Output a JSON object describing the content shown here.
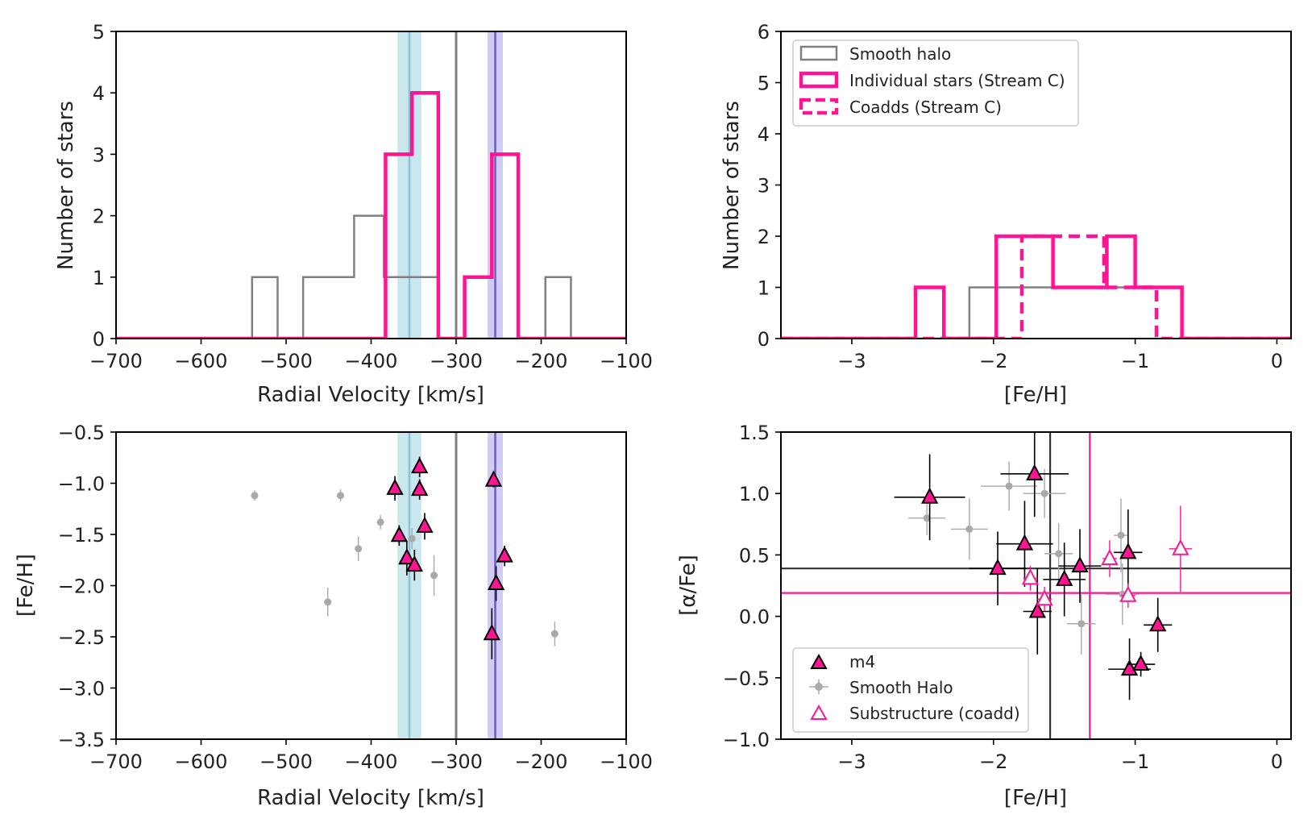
{
  "colors": {
    "magenta": "#ff1493",
    "grey": "#808080",
    "lightgrey": "#a9a9a9",
    "cyan_band": "#add8e6",
    "cyan_line": "#87c4d6",
    "blue_band": "#b9b1f0",
    "blue_line": "#6a5acd",
    "dark": "#333333"
  },
  "chart_data": [
    {
      "id": "rv_hist",
      "type": "histogram",
      "xlabel": "Radial Velocity [km/s]",
      "ylabel": "Number of stars",
      "xlim": [
        -700,
        -100
      ],
      "ylim": [
        0,
        5
      ],
      "xticks": [
        -700,
        -600,
        -500,
        -400,
        -300,
        -200,
        -100
      ],
      "xtick_labels": [
        "−700",
        "−600",
        "−500",
        "−400",
        "−300",
        "−200",
        "−100"
      ],
      "yticks": [
        0,
        1,
        2,
        3,
        4,
        5
      ],
      "ytick_labels": [
        "0",
        "1",
        "2",
        "3",
        "4",
        "5"
      ],
      "bands": [
        {
          "name": "stream-c-velocity-band",
          "x0": -369,
          "x1": -341,
          "center": -355,
          "color": "cyan"
        },
        {
          "name": "second-velocity-band",
          "x0": -263,
          "x1": -245,
          "center": -254,
          "color": "blue"
        }
      ],
      "vlines": [
        {
          "name": "halo-mean-velocity",
          "x": -300
        }
      ],
      "series": [
        {
          "name": "Smooth halo",
          "edges": [
            -700,
            -540,
            -510,
            -480,
            -420,
            -385,
            -320,
            -290,
            -260,
            -230,
            -195,
            -165,
            -100
          ],
          "counts": [
            0,
            1,
            0,
            1,
            2,
            1,
            0,
            0,
            0,
            0,
            1,
            0
          ]
        },
        {
          "name": "Individual stars (Stream C)",
          "edges": [
            -700,
            -383,
            -352,
            -321,
            -290,
            -258,
            -227,
            -100
          ],
          "counts": [
            0,
            3,
            4,
            0,
            1,
            3,
            0
          ]
        }
      ]
    },
    {
      "id": "feh_hist",
      "type": "histogram",
      "xlabel": "[Fe/H]",
      "ylabel": "Number of stars",
      "xlim": [
        -3.5,
        0.1
      ],
      "ylim": [
        0,
        6
      ],
      "xticks": [
        -3,
        -2,
        -1,
        0
      ],
      "xtick_labels": [
        "−3",
        "−2",
        "−1",
        "0"
      ],
      "yticks": [
        0,
        1,
        2,
        3,
        4,
        5,
        6
      ],
      "ytick_labels": [
        "0",
        "1",
        "2",
        "3",
        "4",
        "5",
        "6"
      ],
      "legend": [
        "Smooth halo",
        "Individual stars (Stream C)",
        "Coadds (Stream C)"
      ],
      "series": [
        {
          "name": "Smooth halo",
          "edges": [
            -3.5,
            -2.17,
            -1.6,
            -0.67,
            0.1
          ],
          "counts": [
            0,
            1,
            1,
            0
          ]
        },
        {
          "name": "Individual stars (Stream C)",
          "edges": [
            -3.5,
            -2.55,
            -2.35,
            -1.98,
            -1.58,
            -1.2,
            -1.0,
            -0.67,
            0.1
          ],
          "counts": [
            0,
            1,
            0,
            2,
            1,
            2,
            1,
            0
          ]
        },
        {
          "name": "Coadds (Stream C)",
          "edges": [
            -3.5,
            -1.8,
            -1.22,
            -1.05,
            -0.85,
            0.1
          ],
          "counts": [
            0,
            2,
            1,
            1,
            0
          ]
        }
      ]
    },
    {
      "id": "rv_feh_scatter",
      "type": "scatter",
      "xlabel": "Radial Velocity [km/s]",
      "ylabel": "[Fe/H]",
      "xlim": [
        -700,
        -100
      ],
      "ylim": [
        -3.5,
        -0.5
      ],
      "xticks": [
        -700,
        -600,
        -500,
        -400,
        -300,
        -200,
        -100
      ],
      "xtick_labels": [
        "−700",
        "−600",
        "−500",
        "−400",
        "−300",
        "−200",
        "−100"
      ],
      "yticks": [
        -3.5,
        -3.0,
        -2.5,
        -2.0,
        -1.5,
        -1.0,
        -0.5
      ],
      "ytick_labels": [
        "−3.5",
        "−3.0",
        "−2.5",
        "−2.0",
        "−1.5",
        "−1.0",
        "−0.5"
      ],
      "bands": [
        {
          "name": "stream-c-velocity-band",
          "x0": -369,
          "x1": -341,
          "center": -355,
          "color": "cyan"
        },
        {
          "name": "second-velocity-band",
          "x0": -263,
          "x1": -245,
          "center": -254,
          "color": "blue"
        }
      ],
      "vlines": [
        {
          "name": "halo-mean-velocity",
          "x": -300
        }
      ],
      "series": [
        {
          "name": "Smooth halo",
          "marker": "circle",
          "points": [
            {
              "x": -537,
              "y": -1.12,
              "yerr": 0.05
            },
            {
              "x": -436,
              "y": -1.12,
              "yerr": 0.06
            },
            {
              "x": -389,
              "y": -1.38,
              "yerr": 0.07
            },
            {
              "x": -415,
              "y": -1.64,
              "yerr": 0.12
            },
            {
              "x": -352,
              "y": -1.54,
              "yerr": 0.1
            },
            {
              "x": -451,
              "y": -2.16,
              "yerr": 0.14
            },
            {
              "x": -326,
              "y": -1.9,
              "yerr": 0.2
            },
            {
              "x": -184,
              "y": -2.47,
              "yerr": 0.12
            }
          ]
        },
        {
          "name": "m4",
          "marker": "triangle",
          "points": [
            {
              "x": -372,
              "y": -1.05,
              "yerr": 0.12
            },
            {
              "x": -343,
              "y": -0.84,
              "yerr": 0.1
            },
            {
              "x": -343,
              "y": -1.06,
              "yerr": 0.1
            },
            {
              "x": -337,
              "y": -1.42,
              "yerr": 0.13
            },
            {
              "x": -367,
              "y": -1.51,
              "yerr": 0.1
            },
            {
              "x": -358,
              "y": -1.73,
              "yerr": 0.17
            },
            {
              "x": -349,
              "y": -1.8,
              "yerr": 0.15
            },
            {
              "x": -256,
              "y": -0.97,
              "yerr": 0.07
            },
            {
              "x": -243,
              "y": -1.71,
              "yerr": 0.1
            },
            {
              "x": -253,
              "y": -1.98,
              "yerr": 0.17
            },
            {
              "x": -258,
              "y": -2.47,
              "yerr": 0.25
            }
          ]
        }
      ]
    },
    {
      "id": "feh_alpha_scatter",
      "type": "scatter",
      "xlabel": "[Fe/H]",
      "ylabel": "[α/Fe]",
      "xlim": [
        -3.5,
        0.1
      ],
      "ylim": [
        -1.0,
        1.5
      ],
      "xticks": [
        -3,
        -2,
        -1,
        0
      ],
      "xtick_labels": [
        "−3",
        "−2",
        "−1",
        "0"
      ],
      "yticks": [
        -1.0,
        -0.5,
        0.0,
        0.5,
        1.0,
        1.5
      ],
      "ytick_labels": [
        "−1.0",
        "−0.5",
        "0.0",
        "0.5",
        "1.0",
        "1.5"
      ],
      "hlines": [
        {
          "name": "halo-mean-alpha",
          "y": 0.39,
          "color": "dark"
        },
        {
          "name": "stream-mean-alpha",
          "y": 0.19,
          "color": "magenta"
        }
      ],
      "vlines": [
        {
          "name": "halo-mean-feh",
          "x": -1.6,
          "color": "dark"
        },
        {
          "name": "stream-mean-feh",
          "x": -1.32,
          "color": "magenta"
        }
      ],
      "legend": [
        "m4",
        "Smooth Halo",
        "Substructure (coadd)"
      ],
      "series": [
        {
          "name": "Smooth Halo",
          "marker": "circle",
          "points": [
            {
              "x": -2.47,
              "y": 0.8,
              "xerr": 0.13,
              "yerr": 0.14
            },
            {
              "x": -1.89,
              "y": 1.06,
              "xerr": 0.2,
              "yerr": 0.2
            },
            {
              "x": -1.64,
              "y": 1.0,
              "xerr": 0.15,
              "yerr": 0.2
            },
            {
              "x": -2.17,
              "y": 0.71,
              "xerr": 0.13,
              "yerr": 0.25
            },
            {
              "x": -1.54,
              "y": 0.51,
              "xerr": 0.1,
              "yerr": 0.25
            },
            {
              "x": -1.1,
              "y": 0.66,
              "xerr": 0.05,
              "yerr": 0.3
            },
            {
              "x": -1.38,
              "y": -0.06,
              "xerr": 0.1,
              "yerr": 0.25
            },
            {
              "x": -1.09,
              "y": 0.18,
              "xerr": 0.12,
              "yerr": 0.25
            }
          ]
        },
        {
          "name": "m4",
          "marker": "triangle",
          "points": [
            {
              "x": -2.45,
              "y": 0.97,
              "xerr": 0.25,
              "yerr": 0.35
            },
            {
              "x": -1.71,
              "y": 1.16,
              "xerr": 0.24,
              "yerr": 0.35
            },
            {
              "x": -1.78,
              "y": 0.59,
              "xerr": 0.2,
              "yerr": 0.35
            },
            {
              "x": -1.97,
              "y": 0.39,
              "xerr": 0.2,
              "yerr": 0.3
            },
            {
              "x": -1.39,
              "y": 0.41,
              "xerr": 0.15,
              "yerr": 0.3
            },
            {
              "x": -1.5,
              "y": 0.3,
              "xerr": 0.15,
              "yerr": 0.3
            },
            {
              "x": -1.69,
              "y": 0.04,
              "xerr": 0.1,
              "yerr": 0.35
            },
            {
              "x": -1.05,
              "y": 0.52,
              "xerr": 0.1,
              "yerr": 0.35
            },
            {
              "x": -0.84,
              "y": -0.07,
              "xerr": 0.1,
              "yerr": 0.22
            },
            {
              "x": -1.04,
              "y": -0.43,
              "xerr": 0.15,
              "yerr": 0.25
            },
            {
              "x": -0.96,
              "y": -0.39,
              "xerr": 0.1,
              "yerr": 0.1
            }
          ]
        },
        {
          "name": "Substructure (coadd)",
          "marker": "open-triangle",
          "points": [
            {
              "x": -1.74,
              "y": 0.31,
              "xerr": 0.05,
              "yerr": 0.1
            },
            {
              "x": -1.64,
              "y": 0.14,
              "xerr": 0.05,
              "yerr": 0.1
            },
            {
              "x": -1.18,
              "y": 0.47,
              "xerr": 0.05,
              "yerr": 0.15
            },
            {
              "x": -1.05,
              "y": 0.17,
              "xerr": 0.05,
              "yerr": 0.1
            },
            {
              "x": -0.68,
              "y": 0.55,
              "xerr": 0.08,
              "yerr": 0.35
            }
          ]
        }
      ]
    }
  ]
}
